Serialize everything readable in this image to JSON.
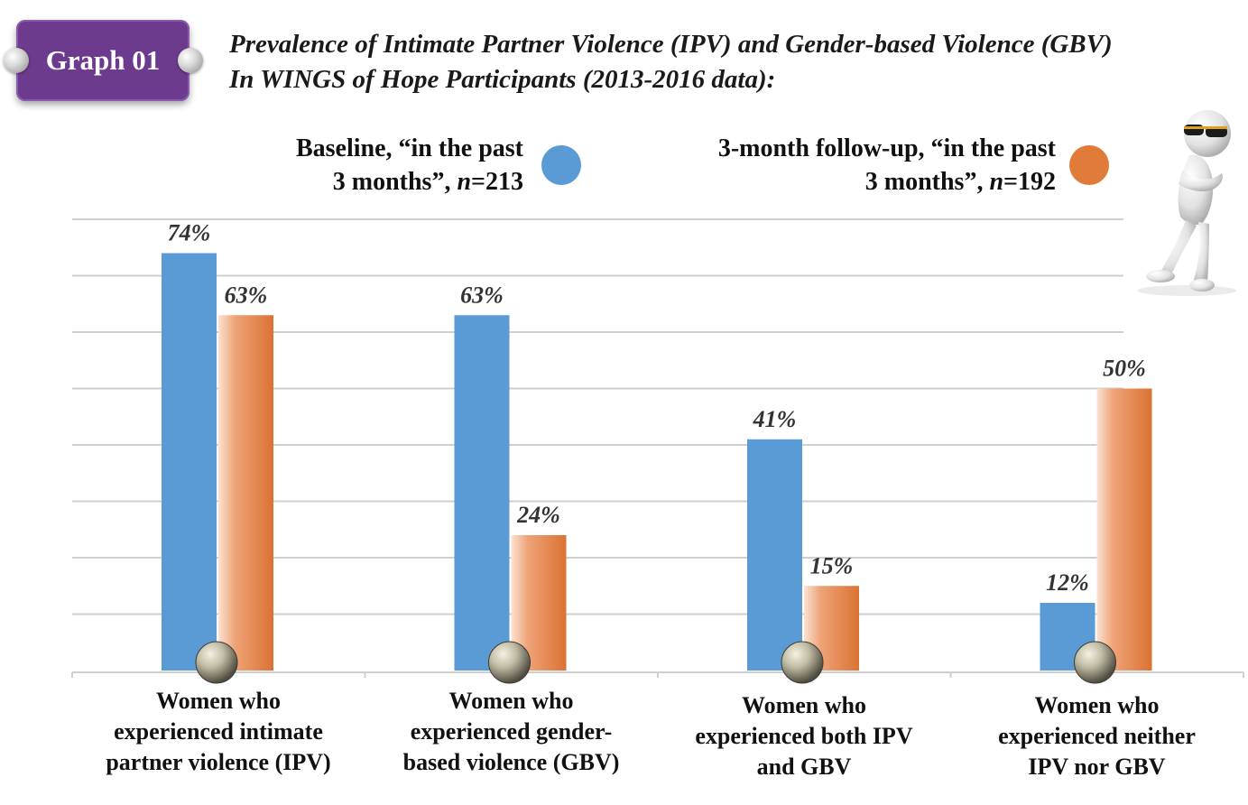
{
  "badge": {
    "label": "Graph 01"
  },
  "title": {
    "line1": "Prevalence of Intimate Partner Violence (IPV) and Gender-based Violence (GBV)",
    "line2": "In WINGS of Hope Participants (2013-2016 data):"
  },
  "legend": [
    {
      "line1": "Baseline, “in the past",
      "line2_prefix": "3 months”, ",
      "n_symbol": "n",
      "n_value": "=213",
      "color": "#5b9bd5"
    },
    {
      "line1": "3-month follow-up, “in the past",
      "line2_prefix": "3 months”, ",
      "n_symbol": "n",
      "n_value": "=192",
      "color": "#e07b39"
    }
  ],
  "chart_data": {
    "type": "bar",
    "categories": [
      [
        "Women who",
        "experienced intimate",
        "partner violence (IPV)"
      ],
      [
        "Women who",
        "experienced gender-",
        "based violence (GBV)"
      ],
      [
        "Women who",
        "experienced both IPV",
        "and GBV"
      ],
      [
        "Women who",
        "experienced neither",
        "IPV nor GBV"
      ]
    ],
    "series": [
      {
        "name": "Baseline, “in the past 3 months”, n=213",
        "values": [
          74,
          63,
          41,
          12
        ],
        "labels": [
          "74%",
          "63%",
          "41%",
          "12%"
        ],
        "color": "#5b9bd5"
      },
      {
        "name": "3-month follow-up, “in the past 3 months”, n=192",
        "values": [
          63,
          24,
          15,
          50
        ],
        "labels": [
          "63%",
          "24%",
          "15%",
          "50%"
        ],
        "color": "#e07b39"
      }
    ],
    "ylim": [
      0,
      80
    ],
    "grid": true,
    "xlabel": "",
    "ylabel": ""
  }
}
